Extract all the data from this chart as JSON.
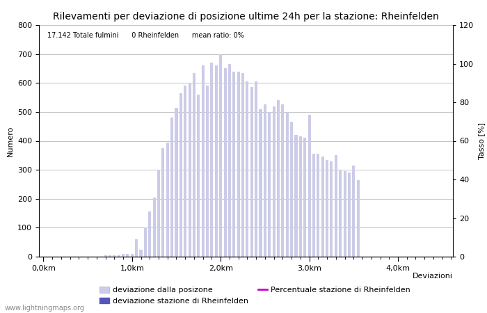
{
  "title": "Rilevamenti per deviazione di posizione ultime 24h per la stazione: Rheinfelden",
  "subtitle": "17.142 Totale fulmini      0 Rheinfelden      mean ratio: 0%",
  "xlabel": "Deviazioni",
  "ylabel_left": "Numero",
  "ylabel_right": "Tasso [%]",
  "bar_color": "#cccce8",
  "bar_color_station": "#5555bb",
  "line_color": "#cc00cc",
  "background_color": "#ffffff",
  "grid_color": "#aaaaaa",
  "ylim_left": [
    0,
    800
  ],
  "ylim_right": [
    0,
    120
  ],
  "yticks_left": [
    0,
    100,
    200,
    300,
    400,
    500,
    600,
    700,
    800
  ],
  "yticks_right": [
    0,
    20,
    40,
    60,
    80,
    100,
    120
  ],
  "x_positions": [
    0.05,
    0.1,
    0.15,
    0.2,
    0.25,
    0.3,
    0.35,
    0.4,
    0.45,
    0.5,
    0.55,
    0.6,
    0.65,
    0.7,
    0.75,
    0.8,
    0.85,
    0.9,
    0.95,
    1.0,
    1.05,
    1.1,
    1.15,
    1.2,
    1.25,
    1.3,
    1.35,
    1.4,
    1.45,
    1.5,
    1.55,
    1.6,
    1.65,
    1.7,
    1.75,
    1.8,
    1.85,
    1.9,
    1.95,
    2.0,
    2.05,
    2.1,
    2.15,
    2.2,
    2.25,
    2.3,
    2.35,
    2.4,
    2.45,
    2.5,
    2.55,
    2.6,
    2.65,
    2.7,
    2.75,
    2.8,
    2.85,
    2.9,
    2.95,
    3.0,
    3.05,
    3.1,
    3.15,
    3.2,
    3.25,
    3.3,
    3.35,
    3.4,
    3.45,
    3.5,
    3.55,
    3.6,
    3.65,
    3.7,
    3.75,
    3.8,
    3.85,
    3.9,
    3.95,
    4.0,
    4.05,
    4.1,
    4.15,
    4.2,
    4.25,
    4.3,
    4.35,
    4.4,
    4.45,
    4.5
  ],
  "bar_heights": [
    0,
    0,
    0,
    0,
    0,
    0,
    0,
    0,
    0,
    0,
    0,
    0,
    0,
    5,
    5,
    5,
    5,
    10,
    10,
    10,
    60,
    25,
    100,
    155,
    205,
    300,
    375,
    395,
    480,
    515,
    565,
    590,
    600,
    635,
    560,
    660,
    590,
    670,
    660,
    700,
    650,
    665,
    640,
    640,
    635,
    605,
    585,
    605,
    510,
    525,
    500,
    520,
    540,
    525,
    500,
    465,
    420,
    415,
    410,
    490,
    355,
    355,
    345,
    335,
    330,
    350,
    300,
    295,
    290,
    315,
    265,
    0,
    0,
    0,
    0,
    0,
    0,
    0,
    0,
    0,
    0,
    0,
    0,
    0,
    0,
    0,
    0,
    0,
    0,
    0
  ],
  "xtick_positions": [
    0.0,
    1.0,
    2.0,
    3.0,
    4.0
  ],
  "xtick_labels": [
    "0,0km",
    "1,0km",
    "2,0km",
    "3,0km",
    "4,0km"
  ],
  "legend_label_light": "deviazione dalla posizone",
  "legend_label_dark": "deviazione stazione di Rheinfelden",
  "legend_label_line": "Percentuale stazione di Rheinfelden",
  "watermark": "www.lightningmaps.org",
  "title_fontsize": 10,
  "axis_fontsize": 8,
  "tick_fontsize": 8,
  "legend_fontsize": 8
}
